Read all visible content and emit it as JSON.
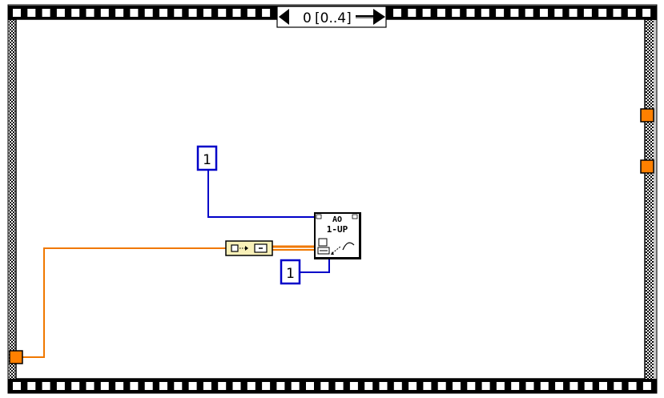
{
  "selector": {
    "value": "0",
    "range": "[0..4]"
  },
  "constants": {
    "upper": "1",
    "lower": "1"
  },
  "subvi": {
    "line1": "AO",
    "line2": "1-UP"
  },
  "colors": {
    "wire_orange": "#f07800",
    "wire_blue": "#0000c8",
    "tunnel_orange": "#ff8000",
    "frame_gray": "#c8c8c8",
    "bundle_fill": "#f8f0b8"
  }
}
